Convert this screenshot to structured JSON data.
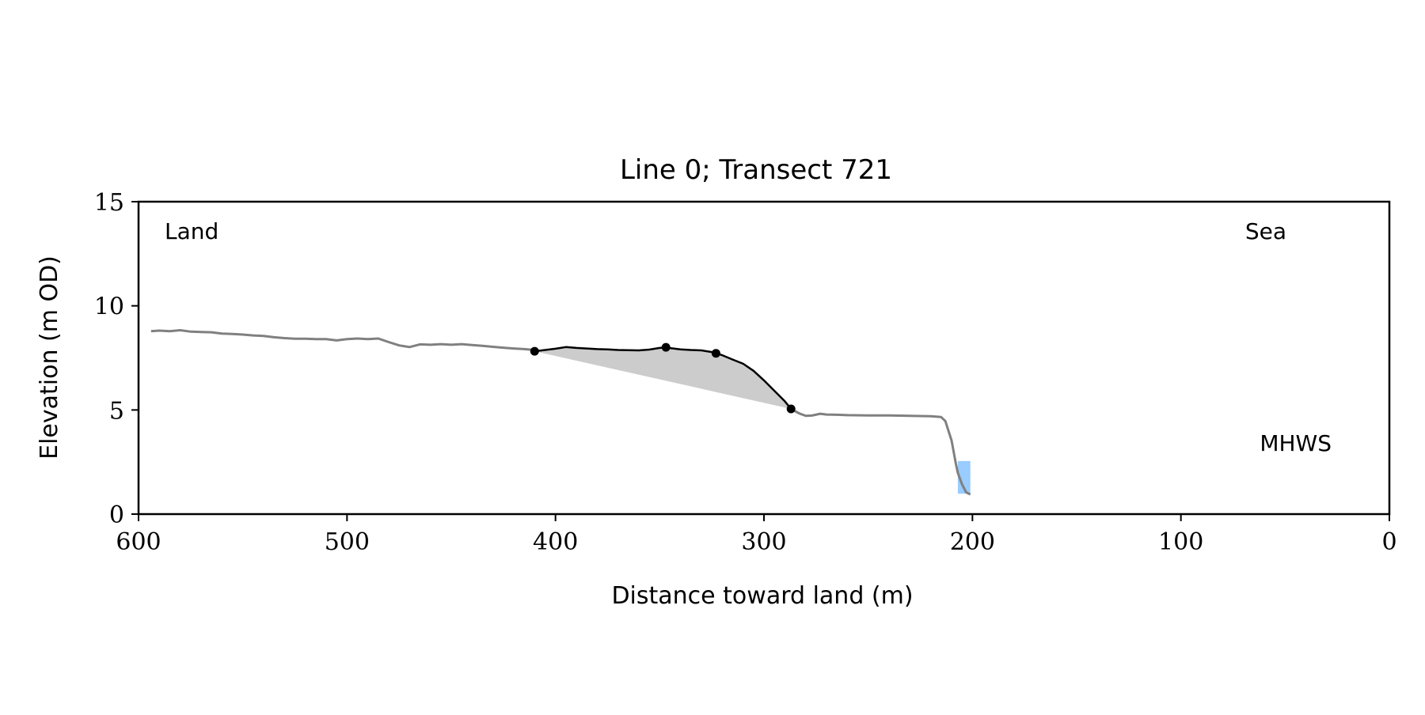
{
  "chart_data": {
    "type": "line",
    "title": "Line 0; Transect 721",
    "xlabel": "Distance toward land (m)",
    "ylabel": "Elevation (m OD)",
    "xlim": [
      600,
      0
    ],
    "ylim": [
      0,
      15
    ],
    "x_ticks": [
      600,
      500,
      400,
      300,
      200,
      100,
      0
    ],
    "y_ticks": [
      0,
      5,
      10,
      15
    ],
    "x_tick_labels": [
      "600",
      "500",
      "400",
      "300",
      "200",
      "100",
      "0"
    ],
    "y_tick_labels": [
      "0",
      "5",
      "10",
      "15"
    ],
    "grid": false,
    "annotations": {
      "land": "Land",
      "sea": "Sea",
      "mhws": "MHWS"
    },
    "colors": {
      "profile": "#808080",
      "dune": "#000000",
      "dune_fill": "#cccccc",
      "mhws_text": "#6699cc",
      "mhws_bar": "#99ccff"
    },
    "series": [
      {
        "x": [
          594,
          590,
          585,
          580,
          575,
          570,
          565,
          560,
          555,
          550,
          545,
          540,
          535,
          530,
          525,
          520,
          515,
          510,
          505,
          500,
          495,
          490,
          485,
          480,
          475,
          470,
          465,
          460,
          455,
          450,
          445,
          440,
          435,
          430,
          425,
          420,
          415,
          410
        ],
        "y": [
          8.78,
          8.81,
          8.78,
          8.83,
          8.76,
          8.74,
          8.73,
          8.67,
          8.65,
          8.62,
          8.58,
          8.55,
          8.49,
          8.45,
          8.42,
          8.42,
          8.4,
          8.4,
          8.34,
          8.4,
          8.43,
          8.4,
          8.43,
          8.26,
          8.1,
          8.02,
          8.15,
          8.13,
          8.16,
          8.13,
          8.16,
          8.12,
          8.08,
          8.03,
          7.99,
          7.95,
          7.92,
          7.88
        ]
      },
      {
        "x": [
          410,
          400,
          395,
          390,
          385,
          380,
          375,
          370,
          365,
          360,
          355,
          350,
          347,
          345,
          340,
          335,
          330,
          325,
          323,
          320,
          315,
          310,
          305,
          300,
          295,
          290,
          287
        ],
        "y": [
          7.82,
          7.94,
          8.02,
          7.98,
          7.95,
          7.92,
          7.91,
          7.88,
          7.87,
          7.86,
          7.9,
          7.98,
          8.01,
          7.97,
          7.91,
          7.88,
          7.86,
          7.78,
          7.72,
          7.63,
          7.42,
          7.22,
          6.88,
          6.42,
          5.92,
          5.42,
          5.05
        ]
      },
      {
        "x": [
          287,
          283,
          280,
          277,
          273,
          270,
          265,
          260,
          250,
          240,
          230,
          220,
          215,
          213,
          210,
          208,
          207,
          205,
          203,
          201
        ],
        "y": [
          5.05,
          4.83,
          4.72,
          4.73,
          4.82,
          4.78,
          4.77,
          4.75,
          4.74,
          4.74,
          4.72,
          4.7,
          4.66,
          4.47,
          3.53,
          2.44,
          1.98,
          1.43,
          1.05,
          0.94
        ]
      }
    ],
    "dune_points": {
      "x": [
        410,
        347,
        323,
        287
      ],
      "y": [
        7.82,
        8.01,
        7.72,
        5.05
      ]
    },
    "mhws_marker": {
      "x": [
        207,
        201
      ],
      "y": [
        0.98,
        2.55
      ]
    },
    "positions": {
      "land_label": "top-left",
      "sea_label": "top-right",
      "mhws_label": "right"
    }
  }
}
